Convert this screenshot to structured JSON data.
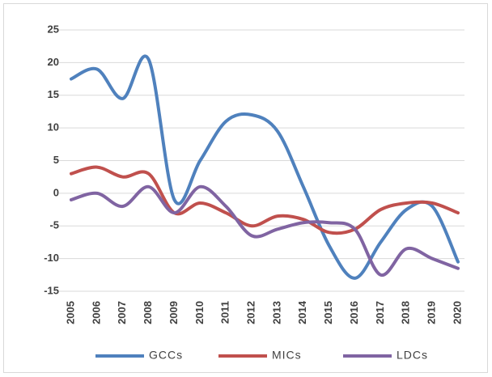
{
  "chart_data": {
    "type": "line",
    "categories": [
      "2005",
      "2006",
      "2007",
      "2008",
      "2009",
      "2010",
      "2011",
      "2012",
      "2013",
      "2014",
      "2015",
      "2016",
      "2017",
      "2018",
      "2019",
      "2020"
    ],
    "series": [
      {
        "name": "GCCs",
        "color": "#4f81bd",
        "values": [
          17.5,
          19,
          14.5,
          20.5,
          -1,
          5,
          11,
          12,
          9.5,
          1,
          -8,
          -13,
          -7.5,
          -2.5,
          -2,
          -10.5
        ]
      },
      {
        "name": "MICs",
        "color": "#c0504d",
        "values": [
          3,
          4,
          2.5,
          3,
          -3,
          -1.5,
          -3,
          -5,
          -3.5,
          -4,
          -6,
          -5.5,
          -2.5,
          -1.5,
          -1.5,
          -3
        ]
      },
      {
        "name": "LDCs",
        "color": "#8064a2",
        "values": [
          -1,
          0,
          -2,
          1,
          -3,
          1,
          -2,
          -6.5,
          -5.5,
          -4.5,
          -4.5,
          -5.5,
          -12.5,
          -8.5,
          -10,
          -11.5
        ]
      }
    ],
    "ylim": [
      -15,
      25
    ],
    "yticks": [
      -15,
      -10,
      -5,
      0,
      5,
      10,
      15,
      20,
      25
    ],
    "grid": true,
    "legend": "bottom"
  }
}
